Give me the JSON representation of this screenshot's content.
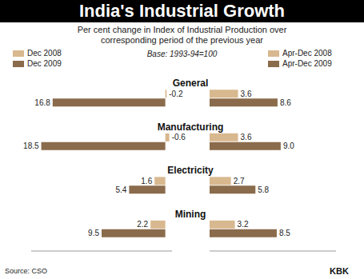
{
  "title": "India's Industrial Growth",
  "subtitle": "Per cent change in Index of Industrial Production over corresponding period of the previous year",
  "note": "Base: 1993-94=100",
  "source": "Source: CSO",
  "credit": "KBK",
  "chart_data": [
    {
      "type": "bar",
      "orientation": "horizontal",
      "data_labels": true,
      "tick_labels": false,
      "legend": "top-left",
      "categories": [
        "General",
        "Manufacturing",
        "Electricity",
        "Mining"
      ],
      "xlim": [
        -1,
        20
      ],
      "series": [
        {
          "name": "Dec 2008",
          "color": "#d8b88e",
          "values": [
            -0.2,
            -0.6,
            1.6,
            2.2
          ]
        },
        {
          "name": "Dec 2009",
          "color": "#8a6b4b",
          "values": [
            16.8,
            18.5,
            5.4,
            9.5
          ]
        }
      ]
    },
    {
      "type": "bar",
      "orientation": "horizontal",
      "data_labels": true,
      "tick_labels": false,
      "legend": "top-right",
      "categories": [
        "General",
        "Manufacturing",
        "Electricity",
        "Mining"
      ],
      "xlim": [
        0,
        16
      ],
      "series": [
        {
          "name": "Apr-Dec 2008",
          "color": "#d8b88e",
          "values": [
            3.6,
            3.6,
            2.7,
            3.2
          ]
        },
        {
          "name": "Apr-Dec 2009",
          "color": "#8a6b4b",
          "values": [
            8.6,
            9.0,
            5.8,
            8.5
          ],
          "value_labels": [
            "8.6",
            "9.0",
            "5.8",
            "8.5"
          ]
        }
      ]
    }
  ]
}
